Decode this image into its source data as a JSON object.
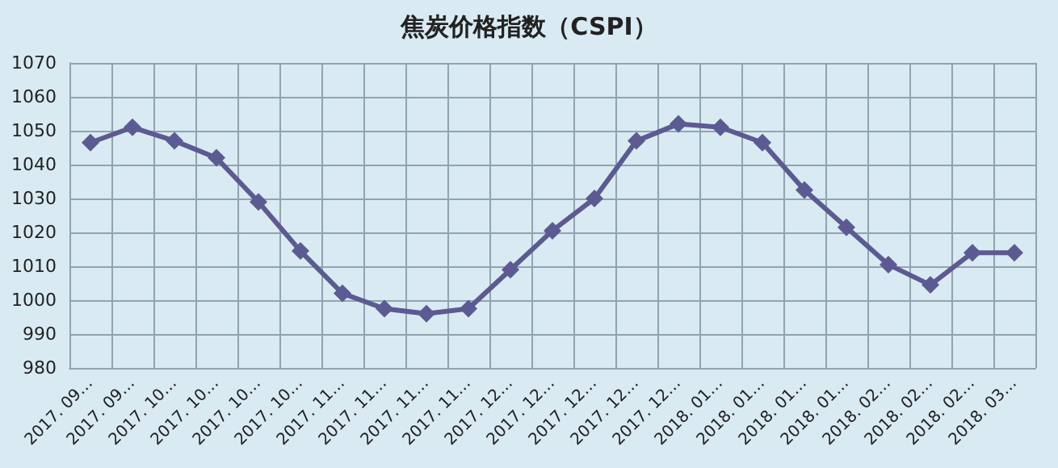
{
  "chart_data": {
    "type": "line",
    "title": "焦炭价格指数（CSPI）",
    "categories": [
      "2017. 09…",
      "2017. 09…",
      "2017. 10…",
      "2017. 10…",
      "2017. 10…",
      "2017. 10…",
      "2017. 11…",
      "2017. 11…",
      "2017. 11…",
      "2017. 11…",
      "2017. 12…",
      "2017. 12…",
      "2017. 12…",
      "2017. 12…",
      "2017. 12…",
      "2018. 01…",
      "2018. 01…",
      "2018. 01…",
      "2018. 01…",
      "2018. 02…",
      "2018. 02…",
      "2018. 02…",
      "2018. 03…"
    ],
    "series": [
      {
        "color": "#5c5a92",
        "values": [
          1046.5,
          1051,
          1047,
          1042,
          1029,
          1014.5,
          1002,
          997.5,
          996,
          997.5,
          1009,
          1020.5,
          1030,
          1047,
          1052,
          1051,
          1046.5,
          1032.5,
          1021.5,
          1010.5,
          1004.5,
          1014,
          1014
        ]
      }
    ],
    "ylim": [
      980,
      1070
    ],
    "yticks": [
      980,
      990,
      1000,
      1010,
      1020,
      1030,
      1040,
      1050,
      1060,
      1070
    ],
    "grid": true,
    "marker": "diamond",
    "line_style": "solid"
  }
}
